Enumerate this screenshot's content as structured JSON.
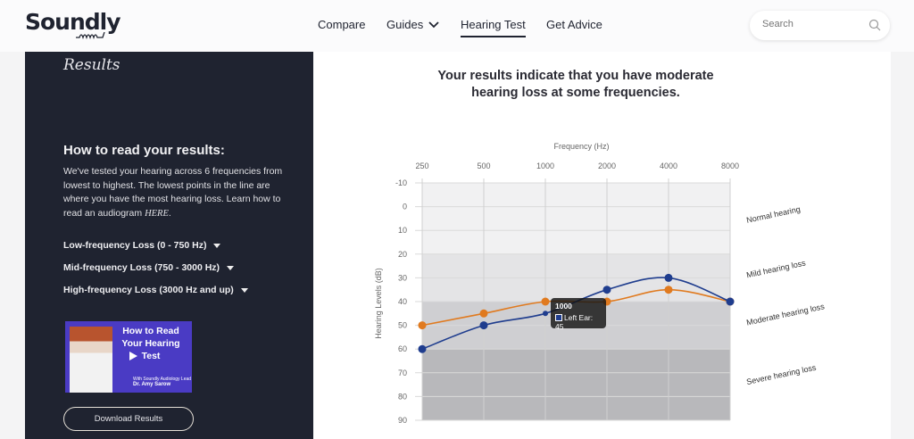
{
  "header": {
    "logo": "Soundly",
    "nav": [
      {
        "label": "Compare"
      },
      {
        "label": "Guides"
      },
      {
        "label": "Hearing Test",
        "active": true
      },
      {
        "label": "Get Advice"
      }
    ],
    "search_placeholder": "Search"
  },
  "sidebar": {
    "section_title": "Results",
    "heading": "How to read your results:",
    "body": "We've tested your hearing across 6 frequencies from lowest to highest. The lowest points in the line are where you have the most hearing loss. Learn how to read an audiogram ",
    "link": "HERE",
    "body_end": ".",
    "accordions": [
      {
        "label": "Low-frequency Loss (0 - 750 Hz)"
      },
      {
        "label": "Mid-frequency Loss (750 - 3000 Hz)"
      },
      {
        "label": "High-frequency Loss (3000 Hz and up)"
      }
    ],
    "video": {
      "title": "How to Read Your Hearing Test",
      "subtitle": "With Soundly Audiology Lead",
      "presenter": "Dr. Amy Sarow"
    },
    "download_label": "Download Results"
  },
  "main": {
    "headline": "Your results indicate that you have moderate hearing loss at some frequencies."
  },
  "tooltip": {
    "title": "1000",
    "label": "Left Ear: 45"
  },
  "chart_data": {
    "type": "line",
    "xlabel": "Frequency (Hz)",
    "ylabel": "Hearing Levels (dB)",
    "categories": [
      "250",
      "500",
      "1000",
      "2000",
      "4000",
      "8000"
    ],
    "yticks": [
      -10,
      0,
      10,
      20,
      30,
      40,
      50,
      60,
      70,
      80,
      90
    ],
    "ylim": [
      -10,
      90
    ],
    "y_inverted": true,
    "x_axis_position": "top",
    "grid": true,
    "series": [
      {
        "name": "Left Ear",
        "color": "#1f3d8e",
        "values": [
          60,
          50,
          45,
          35,
          30,
          40
        ]
      },
      {
        "color": "#e07a1f",
        "values": [
          50,
          45,
          40,
          40,
          35,
          40
        ]
      }
    ],
    "bands": [
      {
        "label": "Normal hearing",
        "from": -10,
        "to": 20,
        "color": "#f1f1f2"
      },
      {
        "label": "Mild hearing loss",
        "from": 20,
        "to": 40,
        "color": "#e4e4e6"
      },
      {
        "label": "Moderate hearing loss",
        "from": 40,
        "to": 60,
        "color": "#cfcfd2"
      },
      {
        "label": "Severe hearing loss",
        "from": 60,
        "to": 90,
        "color": "#b8b8bb"
      }
    ]
  }
}
